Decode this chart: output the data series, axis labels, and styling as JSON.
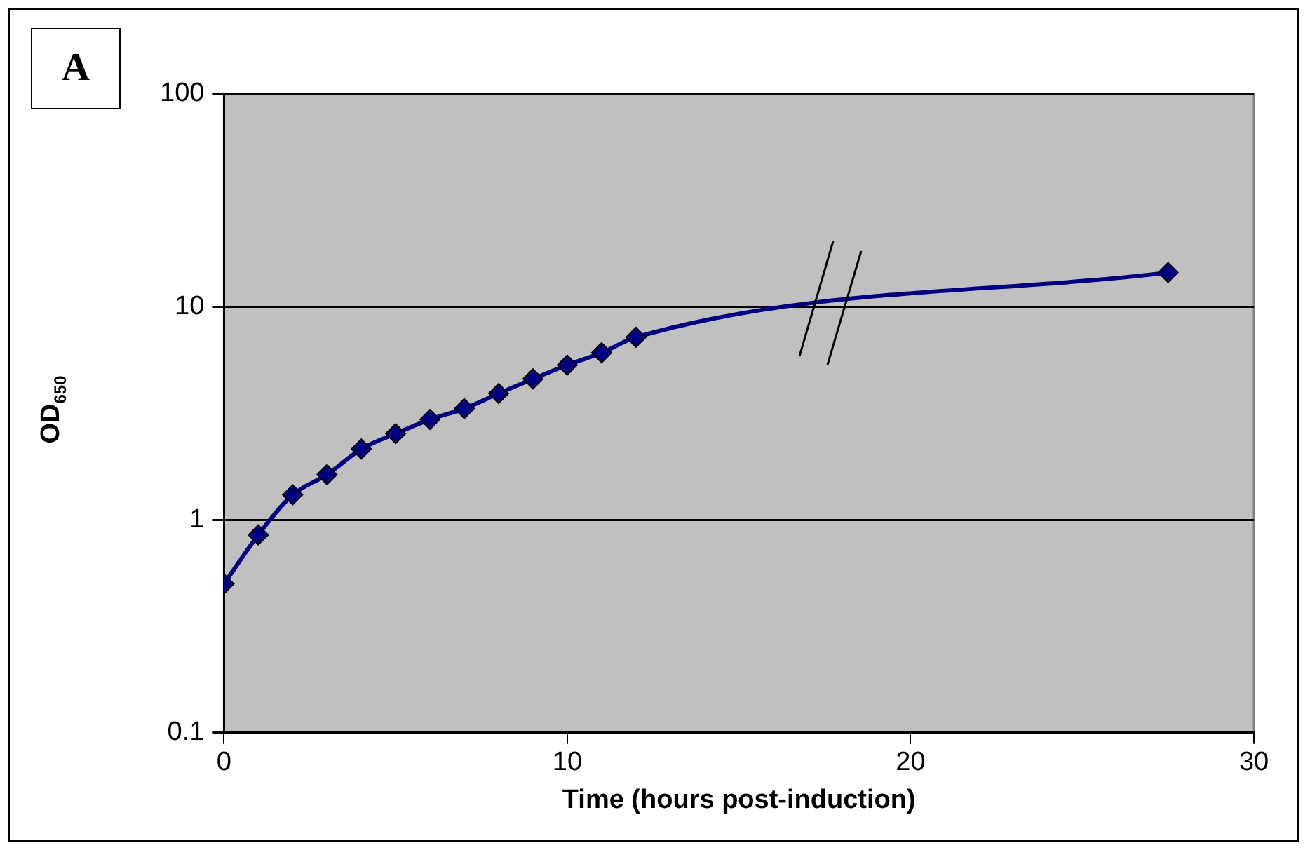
{
  "chart_data": {
    "type": "line",
    "xlabel": "Time (hours post-induction)",
    "ylabel": "OD$_{650}$",
    "annotations": [
      "A"
    ],
    "series": [
      {
        "color": "#000080",
        "x": [
          0,
          1,
          2,
          3,
          4,
          5,
          6,
          7,
          8,
          9,
          10,
          11,
          12,
          27.5
        ],
        "values": [
          0.5,
          0.85,
          1.31,
          1.63,
          2.15,
          2.54,
          2.96,
          3.33,
          3.92,
          4.59,
          5.33,
          6.09,
          7.2,
          14.5
        ]
      }
    ],
    "xlim": [
      0,
      30
    ],
    "xticks": [
      0,
      10,
      20,
      30
    ],
    "ylim": [
      0.1,
      100
    ],
    "yticks": [
      0.1,
      1,
      10,
      100
    ],
    "log": "y",
    "grid": "y",
    "marker": "diamond",
    "line_style": "solid",
    "legend": false
  }
}
